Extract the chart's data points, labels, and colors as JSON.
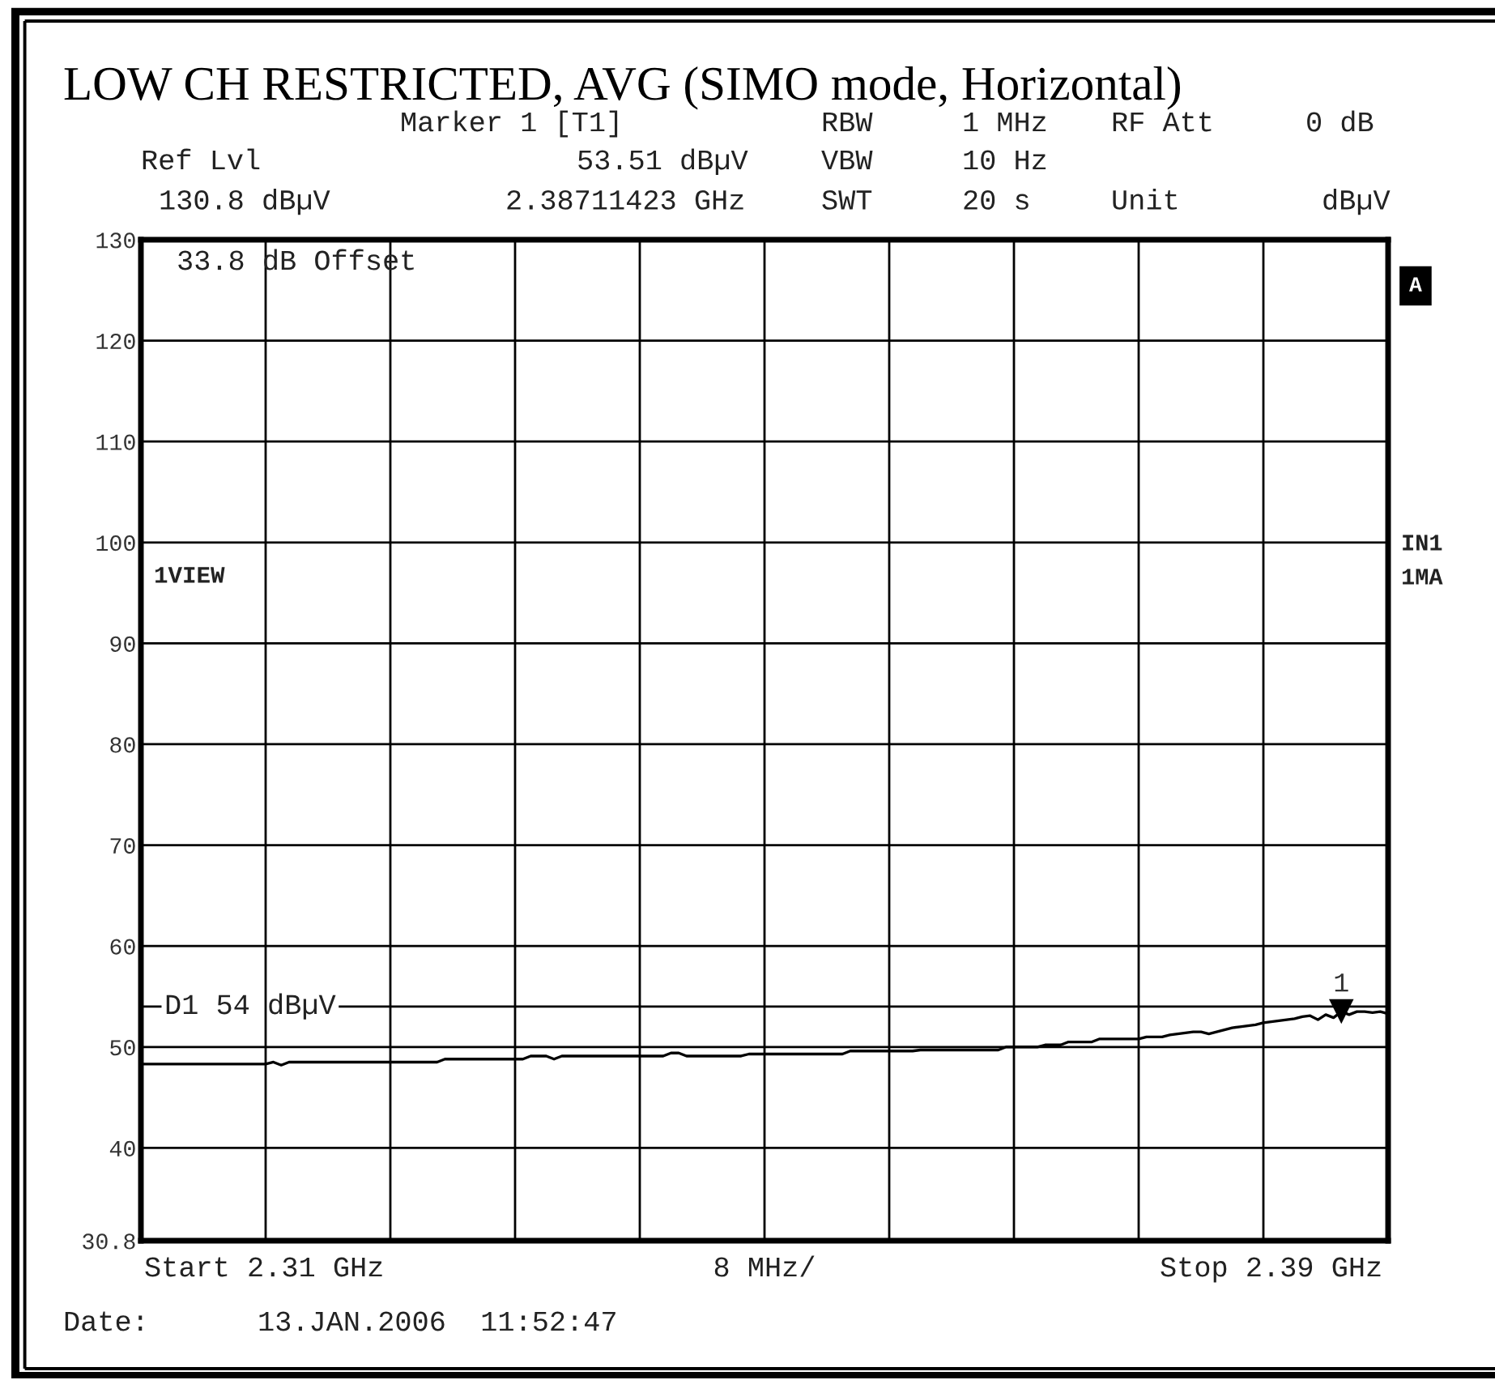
{
  "chart_data": {
    "type": "line",
    "title": "LOW CH RESTRICTED, AVG (SIMO mode, Horizontal)",
    "xlabel": "8 MHz/",
    "categories": [
      null,
      null,
      null,
      null,
      null,
      null,
      null,
      null,
      null,
      null,
      null,
      null,
      null,
      null,
      null,
      null,
      null,
      null,
      null,
      null,
      null,
      null,
      null,
      null,
      null,
      null,
      null,
      null,
      null,
      null,
      null,
      null,
      null,
      null,
      null,
      null,
      null,
      null,
      null,
      null,
      null,
      null,
      null,
      null,
      null,
      null,
      null,
      null,
      null,
      null,
      null,
      null,
      null,
      null,
      null,
      null,
      null,
      null,
      null,
      null,
      null,
      null,
      null,
      null,
      null,
      null,
      null,
      null,
      null,
      null,
      null,
      null,
      null,
      null,
      null,
      null,
      null,
      null,
      null,
      null,
      null,
      null,
      null,
      null,
      null,
      null,
      null,
      null,
      null,
      null,
      null,
      null,
      null,
      null,
      null,
      null,
      null,
      null,
      null,
      null,
      null,
      null,
      null,
      null,
      null,
      null,
      null,
      null,
      null,
      null,
      null,
      null,
      null,
      null,
      null,
      null,
      null,
      null,
      null,
      null,
      null,
      null,
      null,
      null,
      null,
      null,
      null,
      null,
      null,
      null,
      null,
      null,
      null,
      null,
      null,
      null,
      null,
      null,
      null,
      null,
      null,
      null,
      null,
      null,
      null,
      null,
      null,
      null,
      null,
      null,
      null,
      null,
      null,
      null,
      null,
      null,
      null,
      null,
      null,
      null,
      null
    ],
    "ylim": [
      30.8,
      130
    ],
    "yticks": [
      30.8,
      40,
      50,
      60,
      70,
      80,
      90,
      100,
      110,
      120,
      130
    ],
    "tick_labels": "y",
    "grid": true,
    "series": [
      {
        "color": "#000000",
        "values": [
          48.3,
          48.3,
          48.3,
          48.3,
          48.3,
          48.3,
          48.3,
          48.3,
          48.3,
          48.3,
          48.3,
          48.3,
          48.3,
          48.3,
          48.3,
          48.3,
          48.3,
          48.5,
          48.2,
          48.5,
          48.5,
          48.5,
          48.5,
          48.5,
          48.5,
          48.5,
          48.5,
          48.5,
          48.5,
          48.5,
          48.5,
          48.5,
          48.5,
          48.5,
          48.5,
          48.5,
          48.5,
          48.5,
          48.5,
          48.8,
          48.8,
          48.8,
          48.8,
          48.8,
          48.8,
          48.8,
          48.8,
          48.8,
          48.8,
          48.8,
          49.1,
          49.1,
          49.1,
          48.8,
          49.1,
          49.1,
          49.1,
          49.1,
          49.1,
          49.1,
          49.1,
          49.1,
          49.1,
          49.1,
          49.1,
          49.1,
          49.1,
          49.1,
          49.4,
          49.4,
          49.1,
          49.1,
          49.1,
          49.1,
          49.1,
          49.1,
          49.1,
          49.1,
          49.3,
          49.3,
          49.3,
          49.3,
          49.3,
          49.3,
          49.3,
          49.3,
          49.3,
          49.3,
          49.3,
          49.3,
          49.3,
          49.6,
          49.6,
          49.6,
          49.6,
          49.6,
          49.6,
          49.6,
          49.6,
          49.6,
          49.7,
          49.7,
          49.7,
          49.7,
          49.7,
          49.7,
          49.7,
          49.7,
          49.7,
          49.7,
          49.7,
          50.0,
          50.0,
          50.0,
          50.0,
          50.0,
          50.2,
          50.2,
          50.2,
          50.5,
          50.5,
          50.5,
          50.5,
          50.8,
          50.8,
          50.8,
          50.8,
          50.8,
          50.8,
          51.0,
          51.0,
          51.0,
          51.2,
          51.3,
          51.4,
          51.5,
          51.5,
          51.3,
          51.5,
          51.7,
          51.9,
          52.0,
          52.1,
          52.2,
          52.4,
          52.5,
          52.6,
          52.7,
          52.8,
          53.0,
          53.1,
          52.7,
          53.2,
          52.9,
          53.5,
          53.2,
          53.5,
          53.5,
          53.4,
          53.5,
          53.3
        ]
      },
      {
        "type": "scatter",
        "name": "1",
        "color": "#000000",
        "marker": "triangle",
        "values": [
          null,
          null,
          null,
          null,
          null,
          null,
          null,
          null,
          null,
          null,
          null,
          null,
          null,
          null,
          null,
          null,
          null,
          null,
          null,
          null,
          null,
          null,
          null,
          null,
          null,
          null,
          null,
          null,
          null,
          null,
          null,
          null,
          null,
          null,
          null,
          null,
          null,
          null,
          null,
          null,
          null,
          null,
          null,
          null,
          null,
          null,
          null,
          null,
          null,
          null,
          null,
          null,
          null,
          null,
          null,
          null,
          null,
          null,
          null,
          null,
          null,
          null,
          null,
          null,
          null,
          null,
          null,
          null,
          null,
          null,
          null,
          null,
          null,
          null,
          null,
          null,
          null,
          null,
          null,
          null,
          null,
          null,
          null,
          null,
          null,
          null,
          null,
          null,
          null,
          null,
          null,
          null,
          null,
          null,
          null,
          null,
          null,
          null,
          null,
          null,
          null,
          null,
          null,
          null,
          null,
          null,
          null,
          null,
          null,
          null,
          null,
          null,
          null,
          null,
          null,
          null,
          null,
          null,
          null,
          null,
          null,
          null,
          null,
          null,
          null,
          null,
          null,
          null,
          null,
          null,
          null,
          null,
          null,
          null,
          null,
          null,
          null,
          null,
          null,
          null,
          null,
          null,
          null,
          null,
          null,
          null,
          null,
          null,
          null,
          null,
          null,
          null,
          null,
          null,
          53.51,
          null,
          null,
          null,
          null,
          null,
          null
        ]
      }
    ],
    "ref_lines": [
      {
        "axis": "y",
        "value": 54,
        "label": "D1 54 dBµV",
        "color": "#000000"
      }
    ],
    "annotations": [
      "Marker 1 [T1]",
      "RBW",
      "1 MHz",
      "RF Att",
      "0 dB",
      "Ref Lvl",
      "53.51 dBµV",
      "VBW",
      "10 Hz",
      "130.8 dBµV",
      "2.38711423 GHz",
      "SWT",
      "20 s",
      "Unit",
      "dBµV",
      "33.8 dB Offset",
      "1VIEW",
      "A",
      "IN1",
      "1MA",
      "Start 2.31 GHz",
      "Stop 2.39 GHz",
      "Date:",
      "13.JAN.2006  11:52:47"
    ]
  }
}
